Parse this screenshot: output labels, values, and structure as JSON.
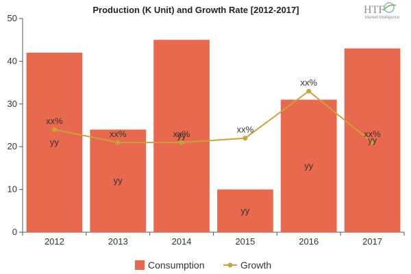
{
  "logo": {
    "brand": "HTF",
    "tagline": "Market Intelligence"
  },
  "chart_data": {
    "type": "bar",
    "title": "Production (K Unit) and Growth Rate [2012-2017]",
    "xlabel": "",
    "ylabel": "",
    "categories": [
      "2012",
      "2013",
      "2014",
      "2015",
      "2016",
      "2017"
    ],
    "ylim": [
      0,
      50
    ],
    "yticks": [
      0,
      10,
      20,
      30,
      40,
      50
    ],
    "grid": false,
    "legend_position": "bottom",
    "series": [
      {
        "name": "Consumption",
        "type": "bar",
        "color": "#e8694e",
        "values": [
          42,
          24,
          45,
          10,
          31,
          43
        ],
        "labels": [
          "yy",
          "yy",
          "yy",
          "yy",
          "yy",
          "yy"
        ]
      },
      {
        "name": "Growth",
        "type": "line",
        "color": "#c9a43a",
        "values": [
          24,
          21,
          21,
          22,
          33,
          21
        ],
        "labels": [
          "xx%",
          "xx%",
          "xx%",
          "xx%",
          "xx%",
          "xx%"
        ]
      }
    ]
  }
}
